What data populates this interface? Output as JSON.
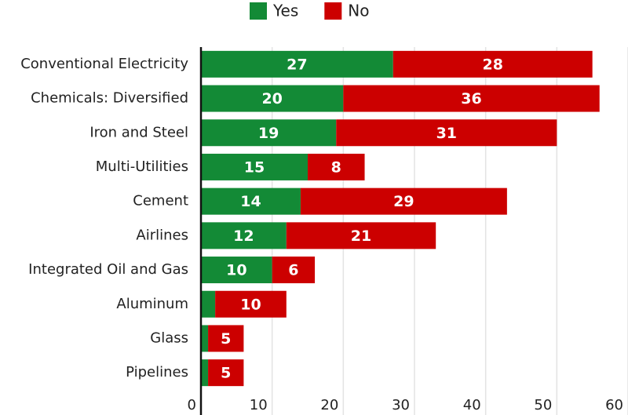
{
  "chart_data": {
    "type": "stacked_bar_horizontal",
    "categories": [
      "Conventional Electricity",
      "Chemicals: Diversified",
      "Iron and Steel",
      "Multi-Utilities",
      "Cement",
      "Airlines",
      "Integrated Oil and Gas",
      "Aluminum",
      "Glass",
      "Pipelines"
    ],
    "series": [
      {
        "name": "Yes",
        "color": "#138a36",
        "values": [
          27,
          20,
          19,
          15,
          14,
          12,
          10,
          2,
          1,
          1
        ]
      },
      {
        "name": "No",
        "color": "#cc0000",
        "values": [
          28,
          36,
          31,
          8,
          29,
          21,
          6,
          10,
          5,
          5
        ]
      }
    ],
    "xlim": [
      0,
      60
    ],
    "xticks": [
      0,
      10,
      20,
      30,
      40,
      50,
      60
    ],
    "grid": true,
    "legend": "top"
  }
}
